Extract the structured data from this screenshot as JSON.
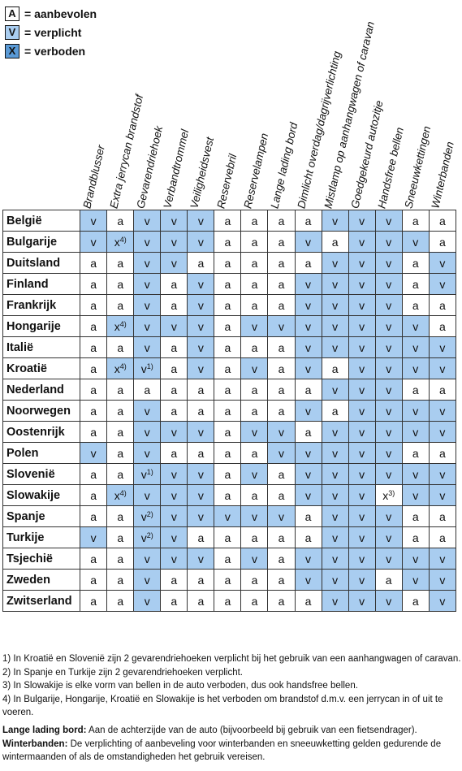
{
  "legend": [
    {
      "symbol": "A",
      "label": "= aanbevolen",
      "color": "#ffffff"
    },
    {
      "symbol": "V",
      "label": "= verplicht",
      "color": "#a9cdf0"
    },
    {
      "symbol": "X",
      "label": "= verboden",
      "color": "#5a9ad6"
    }
  ],
  "columns": [
    "Brandblusser",
    "Extra jerrycan brandstof",
    "Gevarendriehoek",
    "Verbandtrommel",
    "Veiligheidsvest",
    "Reservebril",
    "Reservelampen",
    "Lange lading bord",
    "Dimlicht overdag/dagrijverlichting",
    "Mistlamp op aanhangwagen of caravan",
    "Goedgekeurd autozitje",
    "Handsfree bellen",
    "Sneeuwkettingen",
    "Winterbanden"
  ],
  "colors": {
    "blue": "#a9cdf0",
    "white": "#ffffff"
  },
  "rows": [
    {
      "country": "België",
      "cells": [
        "v",
        "a",
        "v",
        "v",
        "v",
        "a",
        "a",
        "a",
        "a",
        "v",
        "v",
        "v",
        "a",
        "a"
      ],
      "blue": [
        1,
        0,
        1,
        1,
        1,
        0,
        0,
        0,
        0,
        1,
        1,
        1,
        0,
        0
      ],
      "sup": [
        "",
        "",
        "",
        "",
        "",
        "",
        "",
        "",
        "",
        "",
        "",
        "",
        "",
        ""
      ]
    },
    {
      "country": "Bulgarije",
      "cells": [
        "v",
        "x",
        "v",
        "v",
        "v",
        "a",
        "a",
        "a",
        "v",
        "a",
        "v",
        "v",
        "v",
        "a"
      ],
      "blue": [
        1,
        1,
        1,
        1,
        1,
        0,
        0,
        0,
        1,
        0,
        1,
        1,
        1,
        0
      ],
      "sup": [
        "",
        "4)",
        "",
        "",
        "",
        "",
        "",
        "",
        "",
        "",
        "",
        "",
        "",
        ""
      ]
    },
    {
      "country": "Duitsland",
      "cells": [
        "a",
        "a",
        "v",
        "v",
        "a",
        "a",
        "a",
        "a",
        "a",
        "v",
        "v",
        "v",
        "a",
        "v"
      ],
      "blue": [
        0,
        0,
        1,
        1,
        0,
        0,
        0,
        0,
        0,
        1,
        1,
        1,
        0,
        1
      ],
      "sup": [
        "",
        "",
        "",
        "",
        "",
        "",
        "",
        "",
        "",
        "",
        "",
        "",
        "",
        ""
      ]
    },
    {
      "country": "Finland",
      "cells": [
        "a",
        "a",
        "v",
        "a",
        "v",
        "a",
        "a",
        "a",
        "v",
        "v",
        "v",
        "v",
        "a",
        "v"
      ],
      "blue": [
        0,
        0,
        1,
        0,
        1,
        0,
        0,
        0,
        1,
        1,
        1,
        1,
        0,
        1
      ],
      "sup": [
        "",
        "",
        "",
        "",
        "",
        "",
        "",
        "",
        "",
        "",
        "",
        "",
        "",
        ""
      ]
    },
    {
      "country": "Frankrijk",
      "cells": [
        "a",
        "a",
        "v",
        "a",
        "v",
        "a",
        "a",
        "a",
        "v",
        "v",
        "v",
        "v",
        "a",
        "a"
      ],
      "blue": [
        0,
        0,
        1,
        0,
        1,
        0,
        0,
        0,
        1,
        1,
        1,
        1,
        0,
        0
      ],
      "sup": [
        "",
        "",
        "",
        "",
        "",
        "",
        "",
        "",
        "",
        "",
        "",
        "",
        "",
        ""
      ]
    },
    {
      "country": "Hongarije",
      "cells": [
        "a",
        "x",
        "v",
        "v",
        "v",
        "a",
        "v",
        "v",
        "v",
        "v",
        "v",
        "v",
        "v",
        "a"
      ],
      "blue": [
        0,
        1,
        1,
        1,
        1,
        0,
        1,
        1,
        1,
        1,
        1,
        1,
        1,
        0
      ],
      "sup": [
        "",
        "4)",
        "",
        "",
        "",
        "",
        "",
        "",
        "",
        "",
        "",
        "",
        "",
        ""
      ]
    },
    {
      "country": "Italië",
      "cells": [
        "a",
        "a",
        "v",
        "a",
        "v",
        "a",
        "a",
        "a",
        "v",
        "v",
        "v",
        "v",
        "v",
        "v"
      ],
      "blue": [
        0,
        0,
        1,
        0,
        1,
        0,
        0,
        0,
        1,
        1,
        1,
        1,
        1,
        1
      ],
      "sup": [
        "",
        "",
        "",
        "",
        "",
        "",
        "",
        "",
        "",
        "",
        "",
        "",
        "",
        ""
      ]
    },
    {
      "country": "Kroatië",
      "cells": [
        "a",
        "x",
        "v",
        "a",
        "v",
        "a",
        "v",
        "a",
        "v",
        "a",
        "v",
        "v",
        "v",
        "v"
      ],
      "blue": [
        0,
        1,
        1,
        0,
        1,
        0,
        1,
        0,
        1,
        0,
        1,
        1,
        1,
        1
      ],
      "sup": [
        "",
        "4)",
        "1)",
        "",
        "",
        "",
        "",
        "",
        "",
        "",
        "",
        "",
        "",
        ""
      ]
    },
    {
      "country": "Nederland",
      "cells": [
        "a",
        "a",
        "a",
        "a",
        "a",
        "a",
        "a",
        "a",
        "a",
        "v",
        "v",
        "v",
        "a",
        "a"
      ],
      "blue": [
        0,
        0,
        0,
        0,
        0,
        0,
        0,
        0,
        0,
        1,
        1,
        1,
        0,
        0
      ],
      "sup": [
        "",
        "",
        "",
        "",
        "",
        "",
        "",
        "",
        "",
        "",
        "",
        "",
        "",
        ""
      ]
    },
    {
      "country": "Noorwegen",
      "cells": [
        "a",
        "a",
        "v",
        "a",
        "a",
        "a",
        "a",
        "a",
        "v",
        "a",
        "v",
        "v",
        "v",
        "v"
      ],
      "blue": [
        0,
        0,
        1,
        0,
        0,
        0,
        0,
        0,
        1,
        0,
        1,
        1,
        1,
        1
      ],
      "sup": [
        "",
        "",
        "",
        "",
        "",
        "",
        "",
        "",
        "",
        "",
        "",
        "",
        "",
        ""
      ]
    },
    {
      "country": "Oostenrijk",
      "cells": [
        "a",
        "a",
        "v",
        "v",
        "v",
        "a",
        "v",
        "v",
        "a",
        "v",
        "v",
        "v",
        "v",
        "v"
      ],
      "blue": [
        0,
        0,
        1,
        1,
        1,
        0,
        1,
        1,
        0,
        1,
        1,
        1,
        1,
        1
      ],
      "sup": [
        "",
        "",
        "",
        "",
        "",
        "",
        "",
        "",
        "",
        "",
        "",
        "",
        "",
        ""
      ]
    },
    {
      "country": "Polen",
      "cells": [
        "v",
        "a",
        "v",
        "a",
        "a",
        "a",
        "a",
        "v",
        "v",
        "v",
        "v",
        "v",
        "a",
        "a"
      ],
      "blue": [
        1,
        0,
        1,
        0,
        0,
        0,
        0,
        1,
        1,
        1,
        1,
        1,
        0,
        0
      ],
      "sup": [
        "",
        "",
        "",
        "",
        "",
        "",
        "",
        "",
        "",
        "",
        "",
        "",
        "",
        ""
      ]
    },
    {
      "country": "Slovenië",
      "cells": [
        "a",
        "a",
        "v",
        "v",
        "v",
        "a",
        "v",
        "a",
        "v",
        "v",
        "v",
        "v",
        "v",
        "v"
      ],
      "blue": [
        0,
        0,
        1,
        1,
        1,
        0,
        1,
        0,
        1,
        1,
        1,
        1,
        1,
        1
      ],
      "sup": [
        "",
        "",
        "1)",
        "",
        "",
        "",
        "",
        "",
        "",
        "",
        "",
        "",
        "",
        ""
      ]
    },
    {
      "country": "Slowakije",
      "cells": [
        "a",
        "x",
        "v",
        "v",
        "v",
        "a",
        "a",
        "a",
        "v",
        "v",
        "v",
        "x",
        "v",
        "v"
      ],
      "blue": [
        0,
        1,
        1,
        1,
        1,
        0,
        0,
        0,
        1,
        1,
        1,
        0,
        1,
        1
      ],
      "sup": [
        "",
        "4)",
        "",
        "",
        "",
        "",
        "",
        "",
        "",
        "",
        "",
        "3)",
        "",
        ""
      ]
    },
    {
      "country": "Spanje",
      "cells": [
        "a",
        "a",
        "v",
        "v",
        "v",
        "v",
        "v",
        "v",
        "a",
        "v",
        "v",
        "v",
        "a",
        "a"
      ],
      "blue": [
        0,
        0,
        1,
        1,
        1,
        1,
        1,
        1,
        0,
        1,
        1,
        1,
        0,
        0
      ],
      "sup": [
        "",
        "",
        "2)",
        "",
        "",
        "",
        "",
        "",
        "",
        "",
        "",
        "",
        "",
        ""
      ]
    },
    {
      "country": "Turkije",
      "cells": [
        "v",
        "a",
        "v",
        "v",
        "a",
        "a",
        "a",
        "a",
        "a",
        "v",
        "v",
        "v",
        "a",
        "a"
      ],
      "blue": [
        1,
        0,
        1,
        1,
        0,
        0,
        0,
        0,
        0,
        1,
        1,
        1,
        0,
        0
      ],
      "sup": [
        "",
        "",
        "2)",
        "",
        "",
        "",
        "",
        "",
        "",
        "",
        "",
        "",
        "",
        ""
      ]
    },
    {
      "country": "Tsjechië",
      "cells": [
        "a",
        "a",
        "v",
        "v",
        "v",
        "a",
        "v",
        "a",
        "v",
        "v",
        "v",
        "v",
        "v",
        "v"
      ],
      "blue": [
        0,
        0,
        1,
        1,
        1,
        0,
        1,
        0,
        1,
        1,
        1,
        1,
        1,
        1
      ],
      "sup": [
        "",
        "",
        "",
        "",
        "",
        "",
        "",
        "",
        "",
        "",
        "",
        "",
        "",
        ""
      ]
    },
    {
      "country": "Zweden",
      "cells": [
        "a",
        "a",
        "v",
        "a",
        "a",
        "a",
        "a",
        "a",
        "v",
        "v",
        "v",
        "a",
        "v",
        "v"
      ],
      "blue": [
        0,
        0,
        1,
        0,
        0,
        0,
        0,
        0,
        1,
        1,
        1,
        0,
        1,
        1
      ],
      "sup": [
        "",
        "",
        "",
        "",
        "",
        "",
        "",
        "",
        "",
        "",
        "",
        "",
        "",
        ""
      ]
    },
    {
      "country": "Zwitserland",
      "cells": [
        "a",
        "a",
        "v",
        "a",
        "a",
        "a",
        "a",
        "a",
        "a",
        "v",
        "v",
        "v",
        "a",
        "v"
      ],
      "blue": [
        0,
        0,
        1,
        0,
        0,
        0,
        0,
        0,
        0,
        1,
        1,
        1,
        0,
        1
      ],
      "sup": [
        "",
        "",
        "",
        "",
        "",
        "",
        "",
        "",
        "",
        "",
        "",
        "",
        "",
        ""
      ]
    }
  ],
  "footnotes": [
    "1)  In Kroatië en Slovenië zijn 2 gevarendriehoeken verplicht bij het gebruik van een aanhangwagen of caravan.",
    "2)  In Spanje en Turkije zijn 2 gevarendriehoeken verplicht.",
    "3)  In Slowakije is elke vorm van bellen in de auto verboden, dus ook handsfree bellen.",
    "4)  In Bulgarije, Hongarije, Kroatië en Slowakije is het verboden om brandstof d.m.v. een jerrycan in of uit te voeren."
  ],
  "definitions": [
    {
      "term": "Lange lading bord:",
      "text": " Aan de achterzijde van de auto (bijvoorbeeld bij gebruik van een fietsendrager)."
    },
    {
      "term": "Winterbanden:",
      "text": " De verplichting of aanbeveling voor winterbanden en sneeuwketting gelden gedurende de wintermaanden of als de omstandigheden het gebruik vereisen."
    }
  ]
}
